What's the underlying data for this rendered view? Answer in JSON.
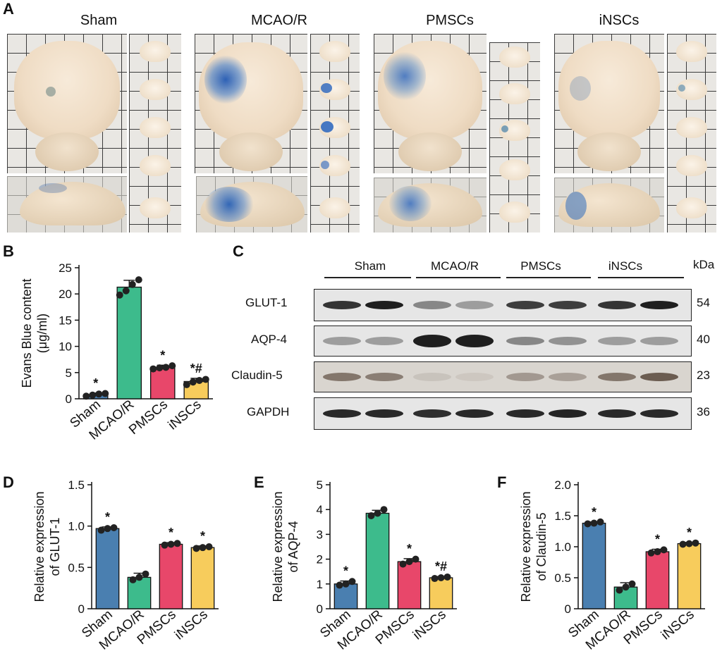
{
  "panels": {
    "A": "A",
    "B": "B",
    "C": "C",
    "D": "D",
    "E": "E",
    "F": "F"
  },
  "photo_titles": [
    "Sham",
    "MCAO/R",
    "PMSCs",
    "iNSCs"
  ],
  "colors": {
    "sham": "#4a7fb0",
    "mcao": "#3dbb8c",
    "pmsc": "#e8476a",
    "insc": "#f7cc5c",
    "evans_blue": "#2f6cb5"
  },
  "blot": {
    "groups": [
      "Sham",
      "MCAO/R",
      "PMSCs",
      "iNSCs"
    ],
    "unit_header": "kDa",
    "rows": [
      {
        "label": "GLUT-1",
        "kda": "54"
      },
      {
        "label": "AQP-4",
        "kda": "40"
      },
      {
        "label": "Claudin-5",
        "kda": "23"
      },
      {
        "label": "GAPDH",
        "kda": "36"
      }
    ]
  },
  "chart_data": [
    {
      "panel": "B",
      "type": "bar",
      "categories": [
        "Sham",
        "MCAO/R",
        "PMSCs",
        "iNSCs"
      ],
      "values": [
        0.8,
        21.3,
        6.0,
        3.3
      ],
      "errors": [
        0.3,
        1.3,
        0.4,
        0.6
      ],
      "points": [
        [
          0.5,
          0.7,
          0.9,
          1.0
        ],
        [
          19.8,
          20.6,
          21.8,
          22.7
        ],
        [
          5.7,
          5.9,
          6.0,
          6.3
        ],
        [
          2.7,
          3.2,
          3.5,
          3.7
        ]
      ],
      "annotations": [
        "*",
        "",
        "*",
        "*#"
      ],
      "ylabel_lines": [
        "Evans Blue content",
        "(μg/ml)"
      ],
      "ylim": [
        0,
        25
      ],
      "yticks": [
        "0",
        "5",
        "10",
        "15",
        "20",
        "25"
      ]
    },
    {
      "panel": "D",
      "type": "bar",
      "categories": [
        "Sham",
        "MCAO/R",
        "PMSCs",
        "iNSCs"
      ],
      "values": [
        0.97,
        0.38,
        0.78,
        0.74
      ],
      "errors": [
        0.02,
        0.05,
        0.02,
        0.02
      ],
      "points": [
        [
          0.95,
          0.97,
          0.98
        ],
        [
          0.35,
          0.38,
          0.42
        ],
        [
          0.77,
          0.78,
          0.79
        ],
        [
          0.73,
          0.74,
          0.75
        ]
      ],
      "annotations": [
        "*",
        "",
        "*",
        "*"
      ],
      "ylabel_lines": [
        "Relative expression",
        "of GLUT-1"
      ],
      "ylim": [
        0,
        1.5
      ],
      "yticks": [
        "0",
        "0.5",
        "1.0",
        "1.5"
      ]
    },
    {
      "panel": "E",
      "type": "bar",
      "categories": [
        "Sham",
        "MCAO/R",
        "PMSCs",
        "iNSCs"
      ],
      "values": [
        1.0,
        3.85,
        1.9,
        1.25
      ],
      "errors": [
        0.12,
        0.12,
        0.12,
        0.05
      ],
      "points": [
        [
          0.95,
          1.0,
          1.1
        ],
        [
          3.75,
          3.85,
          4.0
        ],
        [
          1.8,
          1.9,
          2.0
        ],
        [
          1.22,
          1.25,
          1.28
        ]
      ],
      "annotations": [
        "*",
        "",
        "*",
        "*#"
      ],
      "ylabel_lines": [
        "Relative expression",
        "of AQP-4"
      ],
      "ylim": [
        0,
        5
      ],
      "yticks": [
        "0",
        "1",
        "2",
        "3",
        "4",
        "5"
      ]
    },
    {
      "panel": "F",
      "type": "bar",
      "categories": [
        "Sham",
        "MCAO/R",
        "PMSCs",
        "iNSCs"
      ],
      "values": [
        1.38,
        0.35,
        0.92,
        1.05
      ],
      "errors": [
        0.02,
        0.07,
        0.04,
        0.02
      ],
      "points": [
        [
          1.37,
          1.38,
          1.4
        ],
        [
          0.3,
          0.35,
          0.4
        ],
        [
          0.9,
          0.92,
          0.95
        ],
        [
          1.04,
          1.05,
          1.06
        ]
      ],
      "annotations": [
        "*",
        "",
        "*",
        "*"
      ],
      "ylabel_lines": [
        "Relative expression",
        "of Claudin-5"
      ],
      "ylim": [
        0,
        2.0
      ],
      "yticks": [
        "0",
        "0.5",
        "1.0",
        "1.5",
        "2.0"
      ]
    }
  ]
}
